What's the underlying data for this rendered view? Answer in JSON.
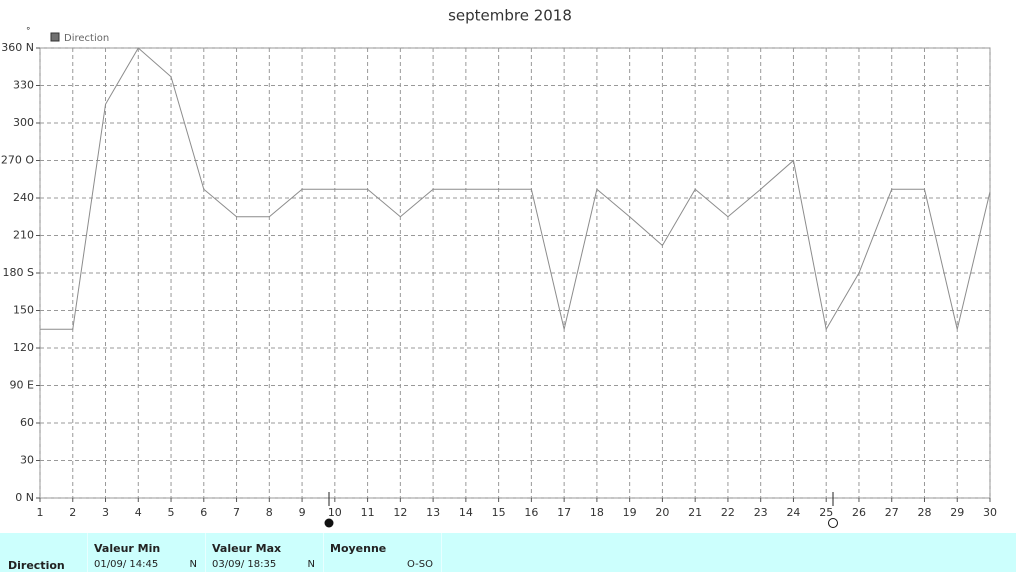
{
  "chart_data": {
    "type": "line",
    "title": "septembre 2018",
    "y_unit": "°",
    "series_name": "Direction",
    "color": "#8c8c8c",
    "x": [
      1,
      2,
      3,
      4,
      5,
      6,
      7,
      8,
      9,
      10,
      11,
      12,
      13,
      14,
      15,
      16,
      17,
      18,
      19,
      20,
      21,
      22,
      23,
      24,
      25,
      26,
      27,
      28,
      29,
      30
    ],
    "values": [
      135,
      135,
      315,
      360,
      337,
      247,
      225,
      225,
      247,
      247,
      247,
      225,
      247,
      247,
      247,
      247,
      135,
      247,
      225,
      202,
      247,
      225,
      247,
      270,
      135,
      180,
      247,
      247,
      135,
      245
    ],
    "xlim": [
      1,
      30
    ],
    "xticks": [
      1,
      2,
      3,
      4,
      5,
      6,
      7,
      8,
      9,
      10,
      11,
      12,
      13,
      14,
      15,
      16,
      17,
      18,
      19,
      20,
      21,
      22,
      23,
      24,
      25,
      26,
      27,
      28,
      29,
      30
    ],
    "ylim": [
      0,
      360
    ],
    "yticks": [
      {
        "value": 0,
        "label": "0 N"
      },
      30,
      60,
      {
        "value": 90,
        "label": "90 E"
      },
      120,
      150,
      {
        "value": 180,
        "label": "180 S"
      },
      210,
      240,
      {
        "value": 270,
        "label": "270 O"
      },
      300,
      330,
      {
        "value": 360,
        "label": "360 N"
      }
    ],
    "grid": true
  },
  "summary": {
    "row_label": "Direction",
    "min": {
      "header": "Valeur Min",
      "time": "01/09/ 14:45",
      "dir": "N"
    },
    "max": {
      "header": "Valeur Max",
      "time": "03/09/ 18:35",
      "dir": "N"
    },
    "mean": {
      "header": "Moyenne",
      "dir": "O-SO"
    }
  }
}
